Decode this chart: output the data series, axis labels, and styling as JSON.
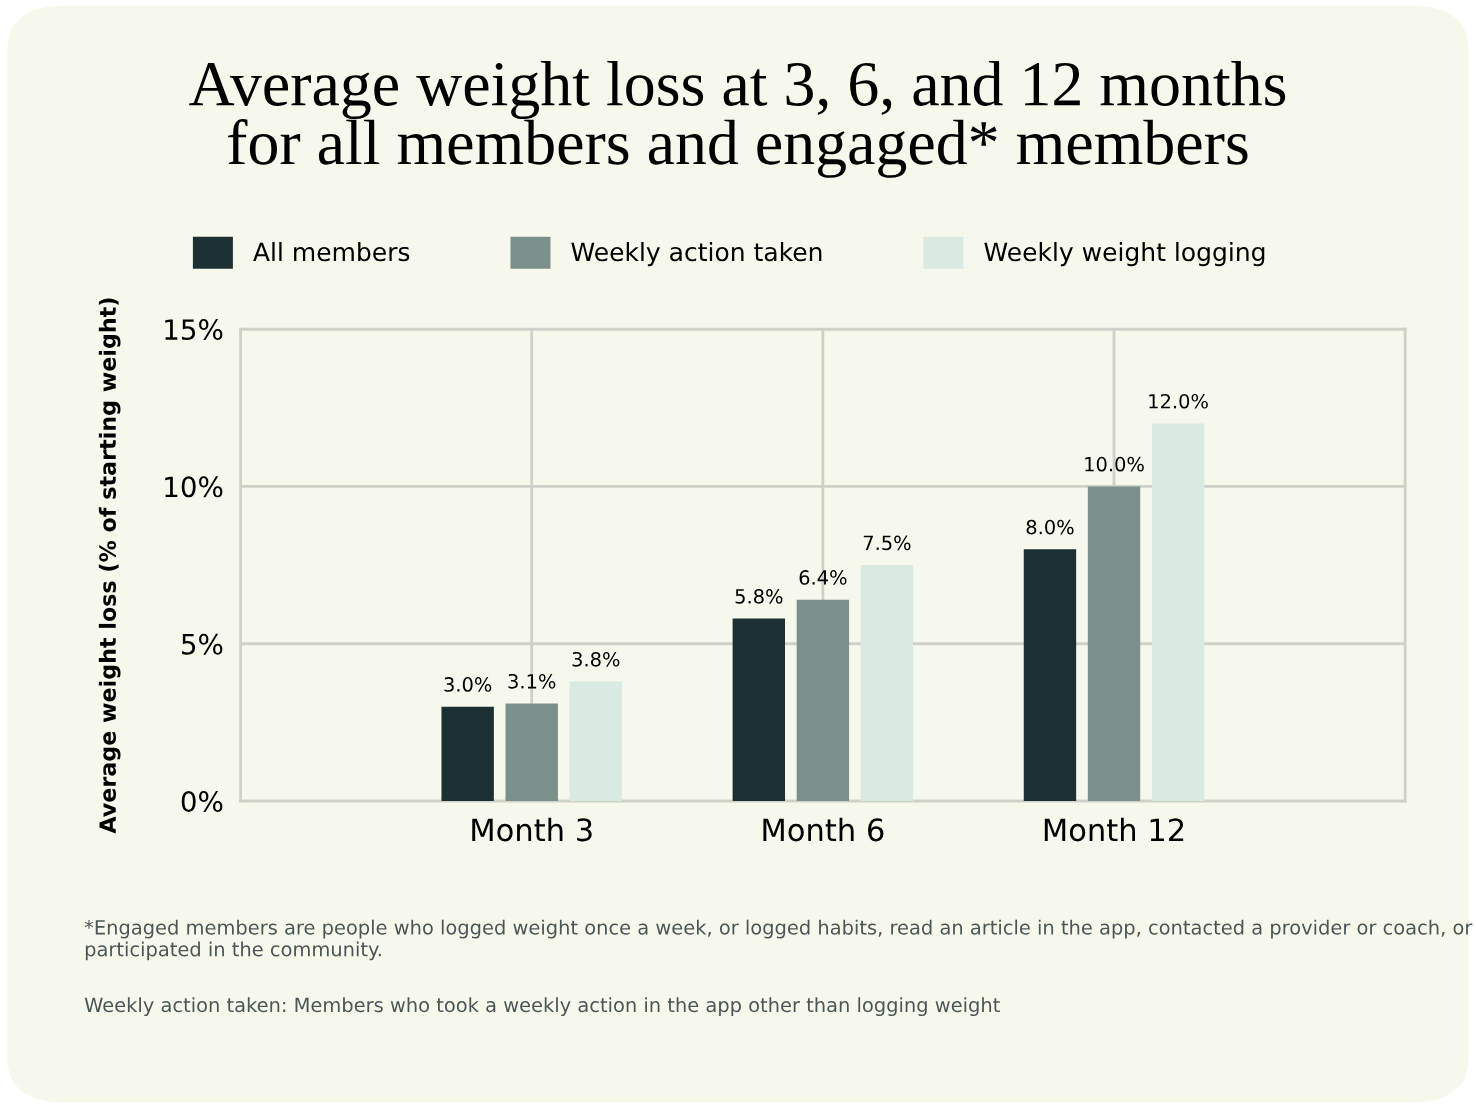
{
  "chart_data": {
    "type": "bar",
    "title": "Average weight loss at 3, 6, and 12 months\nfor all members and engaged* members",
    "ylabel": "Average weight loss (% of starting weight)",
    "categories": [
      "Month 3",
      "Month 6",
      "Month 12"
    ],
    "series": [
      {
        "name": "All members",
        "color": "#1c3033",
        "values": [
          3.0,
          5.8,
          8.0
        ],
        "value_labels": [
          "3.0%",
          "5.8%",
          "8.0%"
        ]
      },
      {
        "name": "Weekly action taken",
        "color": "#7b8f8b",
        "values": [
          3.1,
          6.4,
          10.0
        ],
        "value_labels": [
          "3.1%",
          "6.4%",
          "10.0%"
        ]
      },
      {
        "name": "Weekly weight logging",
        "color": "#d8eae2",
        "values": [
          3.8,
          7.5,
          12.0
        ],
        "value_labels": [
          "3.8%",
          "7.5%",
          "12.0%"
        ]
      }
    ],
    "ylim": [
      0,
      15
    ],
    "yticks": [
      {
        "value": 0,
        "label": "0%"
      },
      {
        "value": 5,
        "label": "5%"
      },
      {
        "value": 10,
        "label": "10%"
      },
      {
        "value": 15,
        "label": "15%"
      }
    ],
    "grid": true,
    "legend": "top",
    "annotations": [
      "*Engaged members are people who logged weight once a week, or logged habits, read an article in the app, contacted a provider or coach, or participated in the community.",
      "Weekly action taken: Members who took a weekly action in the app other than logging weight"
    ]
  }
}
